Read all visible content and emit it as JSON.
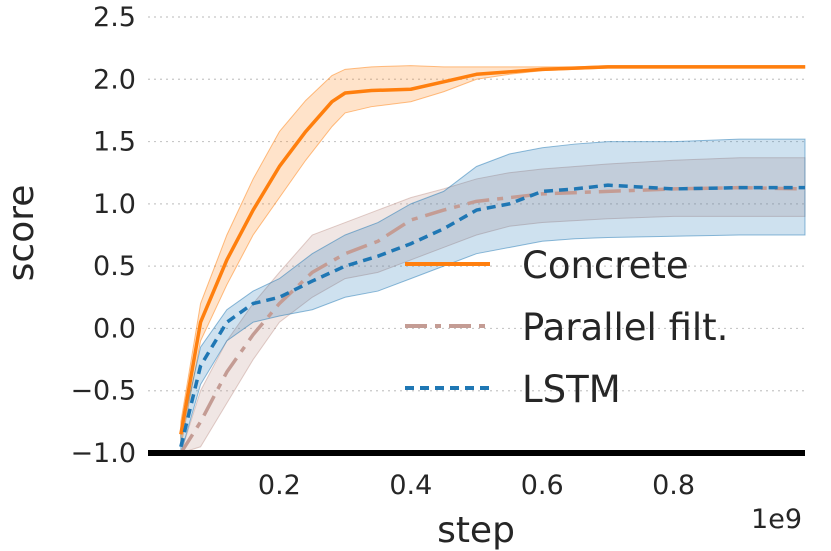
{
  "chart_data": {
    "type": "line",
    "xlabel": "step",
    "ylabel": "score",
    "x_offset_label": "1e9",
    "xlim": [
      0.0,
      1.0
    ],
    "ylim": [
      -1.0,
      2.5
    ],
    "xticks": [
      0.2,
      0.4,
      0.6,
      0.8
    ],
    "xtick_labels": [
      "0.2",
      "0.4",
      "0.6",
      "0.8"
    ],
    "yticks": [
      -1.0,
      -0.5,
      0.0,
      0.5,
      1.0,
      1.5,
      2.0,
      2.5
    ],
    "ytick_labels": [
      "−1.0",
      "−0.5",
      "0.0",
      "0.5",
      "1.0",
      "1.5",
      "2.0",
      "2.5"
    ],
    "grid": "horizontal dotted",
    "legend_position": "lower-right",
    "series": [
      {
        "name": "Concrete",
        "color": "#ff7f0e",
        "linestyle": "solid",
        "x": [
          0.05,
          0.08,
          0.12,
          0.16,
          0.2,
          0.24,
          0.28,
          0.3,
          0.34,
          0.4,
          0.45,
          0.5,
          0.55,
          0.6,
          0.65,
          0.7,
          0.8,
          1.0
        ],
        "y": [
          -0.85,
          0.05,
          0.55,
          0.95,
          1.3,
          1.58,
          1.82,
          1.89,
          1.91,
          1.92,
          1.98,
          2.04,
          2.06,
          2.08,
          2.09,
          2.1,
          2.1,
          2.1
        ],
        "lower": [
          -0.95,
          -0.1,
          0.35,
          0.75,
          1.05,
          1.35,
          1.62,
          1.73,
          1.78,
          1.82,
          1.9,
          2.0,
          2.04,
          2.07,
          2.08,
          2.09,
          2.09,
          2.09
        ],
        "upper": [
          -0.75,
          0.2,
          0.75,
          1.2,
          1.58,
          1.83,
          2.03,
          2.08,
          2.1,
          2.11,
          2.1,
          2.1,
          2.1,
          2.1,
          2.1,
          2.11,
          2.11,
          2.11
        ]
      },
      {
        "name": "Parallel filt.",
        "color": "#c49c94",
        "linestyle": "dashdot",
        "x": [
          0.05,
          0.08,
          0.12,
          0.16,
          0.2,
          0.25,
          0.3,
          0.35,
          0.4,
          0.45,
          0.5,
          0.55,
          0.6,
          0.7,
          0.8,
          0.9,
          1.0
        ],
        "y": [
          -1.0,
          -0.75,
          -0.35,
          -0.05,
          0.2,
          0.45,
          0.6,
          0.7,
          0.87,
          0.95,
          1.02,
          1.05,
          1.08,
          1.1,
          1.12,
          1.13,
          1.12
        ],
        "lower": [
          -1.0,
          -0.95,
          -0.6,
          -0.25,
          0.05,
          0.25,
          0.4,
          0.45,
          0.55,
          0.65,
          0.75,
          0.82,
          0.85,
          0.88,
          0.9,
          0.9,
          0.9
        ],
        "upper": [
          -1.0,
          -0.5,
          -0.1,
          0.2,
          0.45,
          0.75,
          0.85,
          0.95,
          1.05,
          1.12,
          1.2,
          1.25,
          1.28,
          1.32,
          1.35,
          1.37,
          1.37
        ]
      },
      {
        "name": "LSTM",
        "color": "#1f77b4",
        "linestyle": "dashed",
        "x": [
          0.05,
          0.08,
          0.12,
          0.16,
          0.2,
          0.25,
          0.3,
          0.35,
          0.4,
          0.45,
          0.5,
          0.55,
          0.6,
          0.65,
          0.7,
          0.8,
          0.9,
          1.0
        ],
        "y": [
          -0.95,
          -0.3,
          0.05,
          0.2,
          0.25,
          0.38,
          0.5,
          0.58,
          0.68,
          0.8,
          0.95,
          1.0,
          1.1,
          1.12,
          1.15,
          1.12,
          1.13,
          1.13
        ],
        "lower": [
          -1.0,
          -0.45,
          -0.1,
          0.05,
          0.1,
          0.15,
          0.25,
          0.3,
          0.4,
          0.5,
          0.6,
          0.65,
          0.7,
          0.72,
          0.73,
          0.74,
          0.75,
          0.75
        ],
        "upper": [
          -0.85,
          -0.15,
          0.15,
          0.3,
          0.4,
          0.6,
          0.75,
          0.85,
          1.0,
          1.1,
          1.3,
          1.4,
          1.45,
          1.48,
          1.5,
          1.5,
          1.52,
          1.52
        ]
      }
    ]
  }
}
